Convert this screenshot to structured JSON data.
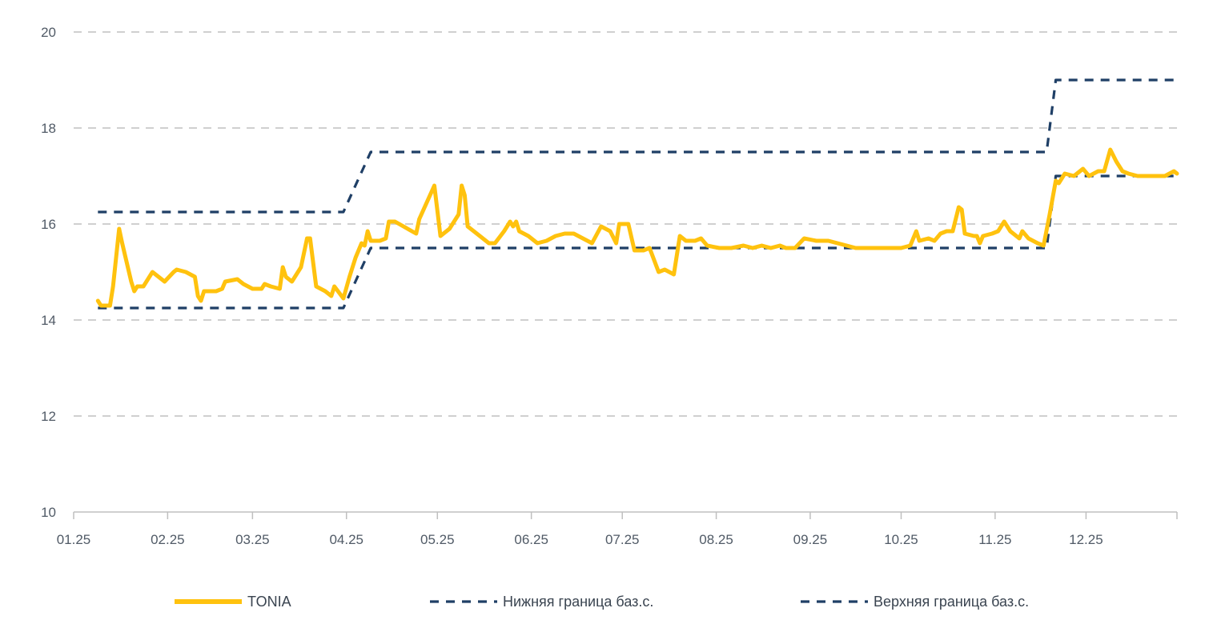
{
  "chart_data": {
    "type": "line",
    "x_ticks": [
      "01.25",
      "02.25",
      "03.25",
      "04.25",
      "05.25",
      "06.25",
      "07.25",
      "08.25",
      "09.25",
      "10.25",
      "11.25",
      "12.25"
    ],
    "y_ticks": [
      "10",
      "12",
      "14",
      "16",
      "18",
      "20"
    ],
    "ylim": [
      10,
      20
    ],
    "xlim": [
      "2025-01-01",
      "2025-12-31"
    ],
    "grid": true,
    "legend_position": "bottom",
    "colors": {
      "tonia": "#FFC20E",
      "bounds": "#1F3F66",
      "grid": "#D0D0D0"
    },
    "series": [
      {
        "name": "TONIA",
        "style": "solid",
        "points": [
          [
            "2025-01-09",
            14.4
          ],
          [
            "2025-01-10",
            14.3
          ],
          [
            "2025-01-13",
            14.3
          ],
          [
            "2025-01-14",
            14.7
          ],
          [
            "2025-01-16",
            15.9
          ],
          [
            "2025-01-17",
            15.6
          ],
          [
            "2025-01-20",
            14.8
          ],
          [
            "2025-01-21",
            14.6
          ],
          [
            "2025-01-22",
            14.7
          ],
          [
            "2025-01-24",
            14.7
          ],
          [
            "2025-01-27",
            15.0
          ],
          [
            "2025-01-29",
            14.9
          ],
          [
            "2025-01-31",
            14.8
          ],
          [
            "2025-02-03",
            15.0
          ],
          [
            "2025-02-04",
            15.05
          ],
          [
            "2025-02-07",
            15.0
          ],
          [
            "2025-02-10",
            14.9
          ],
          [
            "2025-02-11",
            14.5
          ],
          [
            "2025-02-12",
            14.4
          ],
          [
            "2025-02-13",
            14.6
          ],
          [
            "2025-02-17",
            14.6
          ],
          [
            "2025-02-19",
            14.65
          ],
          [
            "2025-02-20",
            14.8
          ],
          [
            "2025-02-24",
            14.85
          ],
          [
            "2025-02-26",
            14.75
          ],
          [
            "2025-03-01",
            14.65
          ],
          [
            "2025-03-04",
            14.65
          ],
          [
            "2025-03-05",
            14.75
          ],
          [
            "2025-03-07",
            14.7
          ],
          [
            "2025-03-10",
            14.65
          ],
          [
            "2025-03-11",
            15.1
          ],
          [
            "2025-03-12",
            14.9
          ],
          [
            "2025-03-14",
            14.8
          ],
          [
            "2025-03-17",
            15.1
          ],
          [
            "2025-03-19",
            15.7
          ],
          [
            "2025-03-20",
            15.7
          ],
          [
            "2025-03-21",
            15.2
          ],
          [
            "2025-03-22",
            14.7
          ],
          [
            "2025-03-25",
            14.6
          ],
          [
            "2025-03-26",
            14.55
          ],
          [
            "2025-03-27",
            14.5
          ],
          [
            "2025-03-28",
            14.7
          ],
          [
            "2025-03-31",
            14.45
          ],
          [
            "2025-04-02",
            14.9
          ],
          [
            "2025-04-04",
            15.3
          ],
          [
            "2025-04-06",
            15.6
          ],
          [
            "2025-04-07",
            15.55
          ],
          [
            "2025-04-08",
            15.85
          ],
          [
            "2025-04-09",
            15.65
          ],
          [
            "2025-04-12",
            15.65
          ],
          [
            "2025-04-14",
            15.7
          ],
          [
            "2025-04-15",
            16.05
          ],
          [
            "2025-04-17",
            16.05
          ],
          [
            "2025-04-24",
            15.8
          ],
          [
            "2025-04-25",
            16.1
          ],
          [
            "2025-04-30",
            16.8
          ],
          [
            "2025-05-02",
            15.75
          ],
          [
            "2025-05-05",
            15.9
          ],
          [
            "2025-05-07",
            16.1
          ],
          [
            "2025-05-08",
            16.2
          ],
          [
            "2025-05-09",
            16.8
          ],
          [
            "2025-05-10",
            16.6
          ],
          [
            "2025-05-11",
            15.95
          ],
          [
            "2025-05-13",
            15.85
          ],
          [
            "2025-05-15",
            15.75
          ],
          [
            "2025-05-18",
            15.6
          ],
          [
            "2025-05-20",
            15.6
          ],
          [
            "2025-05-23",
            15.85
          ],
          [
            "2025-05-25",
            16.05
          ],
          [
            "2025-05-26",
            15.95
          ],
          [
            "2025-05-27",
            16.05
          ],
          [
            "2025-05-28",
            15.85
          ],
          [
            "2025-05-31",
            15.75
          ],
          [
            "2025-06-03",
            15.6
          ],
          [
            "2025-06-06",
            15.65
          ],
          [
            "2025-06-09",
            15.75
          ],
          [
            "2025-06-12",
            15.8
          ],
          [
            "2025-06-15",
            15.8
          ],
          [
            "2025-06-18",
            15.7
          ],
          [
            "2025-06-21",
            15.6
          ],
          [
            "2025-06-24",
            15.95
          ],
          [
            "2025-06-27",
            15.85
          ],
          [
            "2025-06-29",
            15.6
          ],
          [
            "2025-06-30",
            16.0
          ],
          [
            "2025-07-03",
            16.0
          ],
          [
            "2025-07-05",
            15.45
          ],
          [
            "2025-07-08",
            15.45
          ],
          [
            "2025-07-10",
            15.5
          ],
          [
            "2025-07-13",
            15.0
          ],
          [
            "2025-07-15",
            15.05
          ],
          [
            "2025-07-18",
            14.95
          ],
          [
            "2025-07-20",
            15.75
          ],
          [
            "2025-07-22",
            15.65
          ],
          [
            "2025-07-25",
            15.65
          ],
          [
            "2025-07-27",
            15.7
          ],
          [
            "2025-07-29",
            15.55
          ],
          [
            "2025-08-02",
            15.5
          ],
          [
            "2025-08-06",
            15.5
          ],
          [
            "2025-08-10",
            15.55
          ],
          [
            "2025-08-13",
            15.5
          ],
          [
            "2025-08-16",
            15.55
          ],
          [
            "2025-08-19",
            15.5
          ],
          [
            "2025-08-22",
            15.55
          ],
          [
            "2025-08-24",
            15.5
          ],
          [
            "2025-08-27",
            15.5
          ],
          [
            "2025-08-30",
            15.7
          ],
          [
            "2025-09-03",
            15.65
          ],
          [
            "2025-09-07",
            15.65
          ],
          [
            "2025-09-10",
            15.6
          ],
          [
            "2025-09-13",
            15.55
          ],
          [
            "2025-09-16",
            15.5
          ],
          [
            "2025-09-20",
            15.5
          ],
          [
            "2025-09-24",
            15.5
          ],
          [
            "2025-09-28",
            15.5
          ],
          [
            "2025-10-01",
            15.5
          ],
          [
            "2025-10-04",
            15.55
          ],
          [
            "2025-10-06",
            15.85
          ],
          [
            "2025-10-07",
            15.65
          ],
          [
            "2025-10-10",
            15.7
          ],
          [
            "2025-10-12",
            15.65
          ],
          [
            "2025-10-14",
            15.8
          ],
          [
            "2025-10-16",
            15.85
          ],
          [
            "2025-10-18",
            15.85
          ],
          [
            "2025-10-20",
            16.35
          ],
          [
            "2025-10-21",
            16.3
          ],
          [
            "2025-10-22",
            15.8
          ],
          [
            "2025-10-25",
            15.75
          ],
          [
            "2025-10-26",
            15.75
          ],
          [
            "2025-10-27",
            15.6
          ],
          [
            "2025-10-28",
            15.75
          ],
          [
            "2025-10-31",
            15.8
          ],
          [
            "2025-11-02",
            15.85
          ],
          [
            "2025-11-04",
            16.05
          ],
          [
            "2025-11-06",
            15.85
          ],
          [
            "2025-11-09",
            15.7
          ],
          [
            "2025-11-10",
            15.85
          ],
          [
            "2025-11-12",
            15.7
          ],
          [
            "2025-11-15",
            15.6
          ],
          [
            "2025-11-17",
            15.55
          ],
          [
            "2025-11-19",
            16.2
          ],
          [
            "2025-11-21",
            16.9
          ],
          [
            "2025-11-22",
            16.85
          ],
          [
            "2025-11-24",
            17.05
          ],
          [
            "2025-11-27",
            17.0
          ],
          [
            "2025-11-30",
            17.15
          ],
          [
            "2025-12-02",
            17.0
          ],
          [
            "2025-12-05",
            17.1
          ],
          [
            "2025-12-07",
            17.1
          ],
          [
            "2025-12-09",
            17.55
          ],
          [
            "2025-12-11",
            17.3
          ],
          [
            "2025-12-13",
            17.1
          ],
          [
            "2025-12-15",
            17.05
          ],
          [
            "2025-12-18",
            17.0
          ],
          [
            "2025-12-21",
            17.0
          ],
          [
            "2025-12-24",
            17.0
          ],
          [
            "2025-12-27",
            17.0
          ],
          [
            "2025-12-30",
            17.1
          ],
          [
            "2025-12-31",
            17.05
          ]
        ]
      },
      {
        "name": "Нижняя граница баз.с.",
        "style": "dashed",
        "points": [
          [
            "2025-01-09",
            14.25
          ],
          [
            "2025-03-31",
            14.25
          ],
          [
            "2025-04-09",
            15.5
          ],
          [
            "2025-11-18",
            15.5
          ],
          [
            "2025-11-21",
            17.0
          ],
          [
            "2025-12-31",
            17.0
          ]
        ]
      },
      {
        "name": "Верхняя граница баз.с.",
        "style": "dashed",
        "points": [
          [
            "2025-01-09",
            16.25
          ],
          [
            "2025-03-31",
            16.25
          ],
          [
            "2025-04-09",
            17.5
          ],
          [
            "2025-11-18",
            17.5
          ],
          [
            "2025-11-21",
            19.0
          ],
          [
            "2025-12-31",
            19.0
          ]
        ]
      }
    ]
  }
}
